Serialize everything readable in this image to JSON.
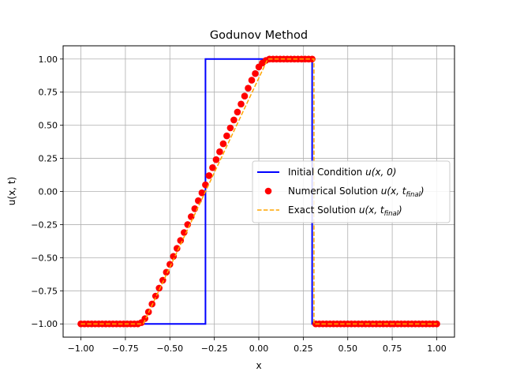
{
  "chart_data": {
    "type": "line",
    "title": "Godunov Method",
    "xlabel": "x",
    "ylabel": "u(x, t)",
    "xlim": [
      -1.1,
      1.1
    ],
    "ylim": [
      -1.1,
      1.1
    ],
    "xticks": [
      -1.0,
      -0.75,
      -0.5,
      -0.25,
      0.0,
      0.25,
      0.5,
      0.75,
      1.0
    ],
    "xtick_labels": [
      "−1.00",
      "−0.75",
      "−0.50",
      "−0.25",
      "0.00",
      "0.25",
      "0.50",
      "0.75",
      "1.00"
    ],
    "yticks": [
      -1.0,
      -0.75,
      -0.5,
      -0.25,
      0.0,
      0.25,
      0.5,
      0.75,
      1.0
    ],
    "ytick_labels": [
      "−1.00",
      "−0.75",
      "−0.50",
      "−0.25",
      "0.00",
      "0.25",
      "0.50",
      "0.75",
      "1.00"
    ],
    "grid": true,
    "legend_position": "center-right",
    "series": [
      {
        "name": "Initial Condition u(x, 0)",
        "style": "line",
        "color": "#0000ff",
        "x": [
          -1.0,
          -0.3,
          -0.3,
          0.3,
          0.3,
          1.0
        ],
        "y": [
          -1.0,
          -1.0,
          1.0,
          1.0,
          -1.0,
          -1.0
        ]
      },
      {
        "name": "Numerical Solution u(x, t_final)",
        "style": "scatter",
        "color": "#ff0000",
        "x": [
          -1.0,
          -0.98,
          -0.96,
          -0.94,
          -0.92,
          -0.9,
          -0.88,
          -0.86,
          -0.84,
          -0.82,
          -0.8,
          -0.78,
          -0.76,
          -0.74,
          -0.72,
          -0.7,
          -0.68,
          -0.66,
          -0.64,
          -0.62,
          -0.6,
          -0.58,
          -0.56,
          -0.54,
          -0.52,
          -0.5,
          -0.48,
          -0.46,
          -0.44,
          -0.42,
          -0.4,
          -0.38,
          -0.36,
          -0.34,
          -0.32,
          -0.3,
          -0.28,
          -0.26,
          -0.24,
          -0.22,
          -0.2,
          -0.18,
          -0.16,
          -0.14,
          -0.12,
          -0.1,
          -0.08,
          -0.06,
          -0.04,
          -0.02,
          0.0,
          0.02,
          0.04,
          0.06,
          0.08,
          0.1,
          0.12,
          0.14,
          0.16,
          0.18,
          0.2,
          0.22,
          0.24,
          0.26,
          0.28,
          0.3,
          0.32,
          0.34,
          0.36,
          0.38,
          0.4,
          0.42,
          0.44,
          0.46,
          0.48,
          0.5,
          0.52,
          0.54,
          0.56,
          0.58,
          0.6,
          0.62,
          0.64,
          0.66,
          0.68,
          0.7,
          0.72,
          0.74,
          0.76,
          0.78,
          0.8,
          0.82,
          0.84,
          0.86,
          0.88,
          0.9,
          0.92,
          0.94,
          0.96,
          0.98,
          1.0
        ],
        "y": [
          -1.0,
          -1.0,
          -1.0,
          -1.0,
          -1.0,
          -1.0,
          -1.0,
          -1.0,
          -1.0,
          -1.0,
          -1.0,
          -1.0,
          -1.0,
          -1.0,
          -1.0,
          -1.0,
          -1.0,
          -0.99,
          -0.96,
          -0.91,
          -0.85,
          -0.79,
          -0.73,
          -0.67,
          -0.61,
          -0.55,
          -0.49,
          -0.43,
          -0.37,
          -0.31,
          -0.25,
          -0.19,
          -0.13,
          -0.07,
          -0.01,
          0.05,
          0.12,
          0.18,
          0.24,
          0.3,
          0.36,
          0.42,
          0.48,
          0.54,
          0.6,
          0.66,
          0.72,
          0.78,
          0.84,
          0.89,
          0.94,
          0.97,
          0.99,
          1.0,
          1.0,
          1.0,
          1.0,
          1.0,
          1.0,
          1.0,
          1.0,
          1.0,
          1.0,
          1.0,
          1.0,
          1.0,
          -1.0,
          -1.0,
          -1.0,
          -1.0,
          -1.0,
          -1.0,
          -1.0,
          -1.0,
          -1.0,
          -1.0,
          -1.0,
          -1.0,
          -1.0,
          -1.0,
          -1.0,
          -1.0,
          -1.0,
          -1.0,
          -1.0,
          -1.0,
          -1.0,
          -1.0,
          -1.0,
          -1.0,
          -1.0,
          -1.0,
          -1.0,
          -1.0,
          -1.0,
          -1.0,
          -1.0,
          -1.0,
          -1.0,
          -1.0,
          -1.0
        ]
      },
      {
        "name": "Exact Solution u(x, t_final)",
        "style": "dashed-line",
        "color": "#ffa500",
        "x": [
          -1.0,
          -0.65,
          0.05,
          0.31,
          0.31,
          1.0
        ],
        "y": [
          -1.0,
          -1.0,
          1.0,
          1.0,
          -1.0,
          -1.0
        ]
      }
    ],
    "legend": [
      {
        "label": "Initial Condition ",
        "math": "u(x, 0)",
        "sub": ""
      },
      {
        "label": "Numerical Solution ",
        "math": "u(x, t",
        "sub": "final",
        "close": ")"
      },
      {
        "label": "Exact Solution ",
        "math": "u(x, t",
        "sub": "final",
        "close": ")"
      }
    ]
  }
}
